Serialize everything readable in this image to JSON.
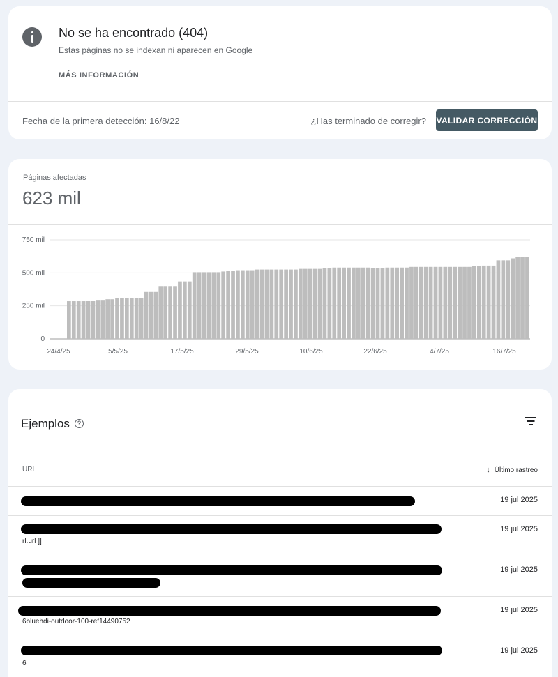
{
  "issue": {
    "title": "No se ha encontrado (404)",
    "subtitle": "Estas páginas no se indexan ni aparecen en Google",
    "more_info": "MÁS INFORMACIÓN",
    "first_detected": "Fecha de la primera detección: 16/8/22",
    "fixed_question": "¿Has terminado de corregir?",
    "validate_button": "VALIDAR CORRECCIÓN"
  },
  "summary": {
    "label": "Páginas afectadas",
    "value": "623 mil"
  },
  "chart_data": {
    "type": "bar",
    "y_ticks": [
      "750 mil",
      "500 mil",
      "250 mil",
      "0"
    ],
    "x_ticks": [
      "24/4/25",
      "5/5/25",
      "17/5/25",
      "29/5/25",
      "10/6/25",
      "22/6/25",
      "4/7/25",
      "16/7/25"
    ],
    "ylim": [
      0,
      750
    ],
    "grid": true,
    "bar_color": "#bdbdbd",
    "values": [
      285,
      285,
      285,
      285,
      290,
      290,
      295,
      295,
      300,
      300,
      310,
      310,
      310,
      310,
      310,
      310,
      355,
      355,
      355,
      400,
      400,
      400,
      400,
      435,
      435,
      435,
      505,
      505,
      505,
      505,
      505,
      505,
      510,
      515,
      515,
      520,
      520,
      520,
      520,
      525,
      525,
      525,
      525,
      525,
      525,
      525,
      525,
      525,
      530,
      530,
      530,
      530,
      530,
      535,
      535,
      540,
      540,
      540,
      540,
      540,
      540,
      540,
      540,
      535,
      535,
      535,
      540,
      540,
      540,
      540,
      540,
      545,
      545,
      545,
      545,
      545,
      545,
      545,
      545,
      545,
      545,
      545,
      545,
      545,
      550,
      550,
      555,
      555,
      555,
      595,
      595,
      595,
      610,
      620,
      620,
      620
    ]
  },
  "examples": {
    "title": "Ejemplos",
    "help_icon": "help-circle-icon",
    "filter_icon": "filter-icon",
    "col_url": "URL",
    "col_last_crawl": "Último rastreo",
    "rows": [
      {
        "date": "19 jul 2025",
        "url_fragment": ""
      },
      {
        "date": "19 jul 2025",
        "url_fragment": "rl.url ]]"
      },
      {
        "date": "19 jul 2025",
        "url_fragment": ""
      },
      {
        "date": "19 jul 2025",
        "url_fragment": "6bluehdi-outdoor-100-ref14490752"
      },
      {
        "date": "19 jul 2025",
        "url_fragment": "6"
      }
    ]
  }
}
